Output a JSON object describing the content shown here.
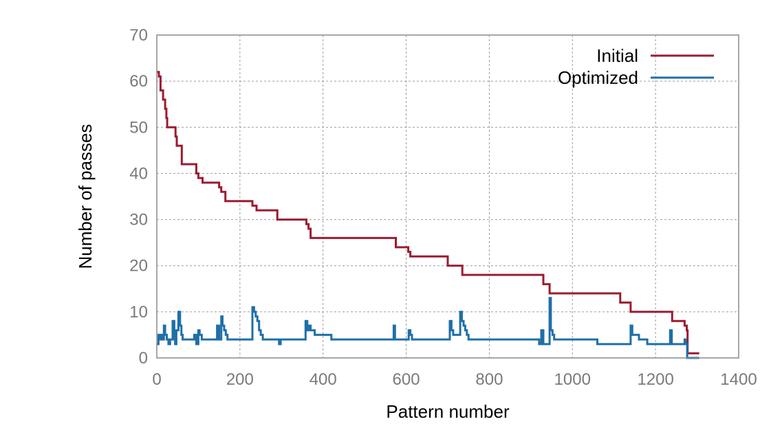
{
  "chart_data": {
    "type": "line",
    "title": "",
    "xlabel": "Pattern number",
    "ylabel": "Number of passes",
    "xlim": [
      0,
      1400
    ],
    "ylim": [
      0,
      70
    ],
    "xticks": [
      0,
      200,
      400,
      600,
      800,
      1000,
      1200,
      1400
    ],
    "yticks": [
      0,
      10,
      20,
      30,
      40,
      50,
      60,
      70
    ],
    "grid": true,
    "legend_position": "top-right",
    "series": [
      {
        "name": "Initial",
        "color": "#9b1b30",
        "step": true,
        "x": [
          0,
          5,
          9,
          15,
          20,
          23,
          25,
          45,
          48,
          52,
          60,
          95,
          100,
          110,
          150,
          155,
          165,
          230,
          240,
          290,
          360,
          365,
          370,
          575,
          605,
          610,
          700,
          735,
          930,
          945,
          1115,
          1140,
          1240,
          1270,
          1275,
          1277,
          1280,
          1305
        ],
        "values": [
          62,
          61,
          58,
          56,
          54,
          52,
          50,
          48,
          46,
          46,
          42,
          40,
          39,
          38,
          37,
          36,
          34,
          33,
          32,
          30,
          29,
          28,
          26,
          24,
          23,
          22,
          20,
          18,
          16,
          14,
          12,
          10,
          8,
          7,
          6,
          1,
          1,
          1
        ]
      },
      {
        "name": "Optimized",
        "color": "#1f6fa8",
        "step": true,
        "x": [
          0,
          4,
          8,
          11,
          14,
          17,
          20,
          24,
          28,
          32,
          38,
          42,
          44,
          47,
          52,
          56,
          59,
          62,
          66,
          70,
          90,
          95,
          100,
          103,
          108,
          110,
          145,
          150,
          155,
          158,
          162,
          166,
          170,
          230,
          234,
          238,
          242,
          246,
          250,
          255,
          290,
          294,
          298,
          358,
          362,
          366,
          370,
          374,
          380,
          385,
          420,
          570,
          573,
          576,
          606,
          610,
          614,
          618,
          705,
          709,
          713,
          730,
          734,
          738,
          742,
          746,
          750,
          920,
          925,
          930,
          945,
          948,
          952,
          956,
          1060,
          1140,
          1144,
          1150,
          1160,
          1170,
          1180,
          1235,
          1239,
          1243,
          1270,
          1273,
          1276,
          1280,
          1305
        ],
        "values": [
          3,
          5,
          4,
          5,
          4,
          7,
          5,
          4,
          3,
          4,
          8,
          4,
          3,
          6,
          10,
          7,
          5,
          4,
          4,
          4,
          5,
          3,
          6,
          5,
          4,
          4,
          7,
          4,
          9,
          7,
          6,
          5,
          4,
          11,
          10,
          9,
          8,
          6,
          5,
          4,
          4,
          3,
          4,
          8,
          6,
          7,
          6,
          6,
          5,
          5,
          4,
          7,
          4,
          4,
          6,
          5,
          4,
          4,
          8,
          6,
          5,
          10,
          8,
          7,
          6,
          5,
          4,
          3,
          6,
          3,
          13,
          6,
          5,
          4,
          3,
          7,
          5,
          5,
          4,
          4,
          3,
          6,
          3,
          3,
          4,
          3,
          0,
          0,
          0
        ]
      }
    ]
  }
}
